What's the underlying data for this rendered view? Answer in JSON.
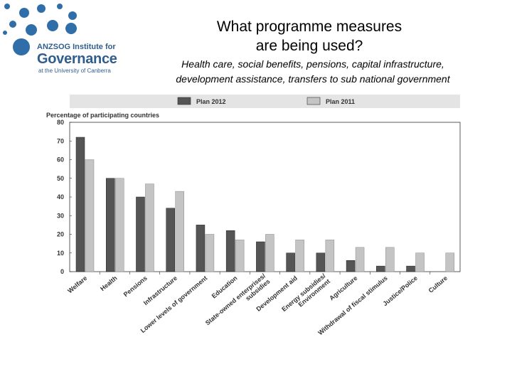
{
  "header": {
    "logo_line1": "ANZSOG Institute for",
    "logo_line2": "Governance",
    "logo_line3": "at the University of Canberra",
    "title_line1": "What programme measures",
    "title_line2": "are being used?",
    "subtitle_line1": "Health care, social benefits, pensions, capital infrastructure,",
    "subtitle_line2": "development assistance, transfers to sub national government"
  },
  "colors": {
    "plan2012": "#555555",
    "plan2011": "#c4c4c4",
    "logo": "#2f6ea8"
  },
  "chart_data": {
    "type": "bar",
    "ylabel": "Percentage of participating countries",
    "ylim": [
      0,
      80
    ],
    "yticks": [
      "0",
      "10",
      "20",
      "30",
      "40",
      "50",
      "60",
      "70",
      "80"
    ],
    "categories": [
      "Welfare",
      "Health",
      "Pensions",
      "Infrastructure",
      "Lower levels of government",
      "Education",
      "State-owned enterprises/ subsidies",
      "Development aid",
      "Energy subsidies/ Environment",
      "Agriculture",
      "Withdrawal of fiscal stimulus",
      "Justice/Police",
      "Culture"
    ],
    "series": [
      {
        "name": "Plan 2012",
        "values": [
          72,
          50,
          40,
          34,
          25,
          22,
          16,
          10,
          10,
          6,
          3,
          3,
          0
        ]
      },
      {
        "name": "Plan 2011",
        "values": [
          60,
          50,
          47,
          43,
          20,
          17,
          20,
          17,
          17,
          13,
          13,
          10,
          10
        ]
      }
    ],
    "legend_position": "top"
  }
}
